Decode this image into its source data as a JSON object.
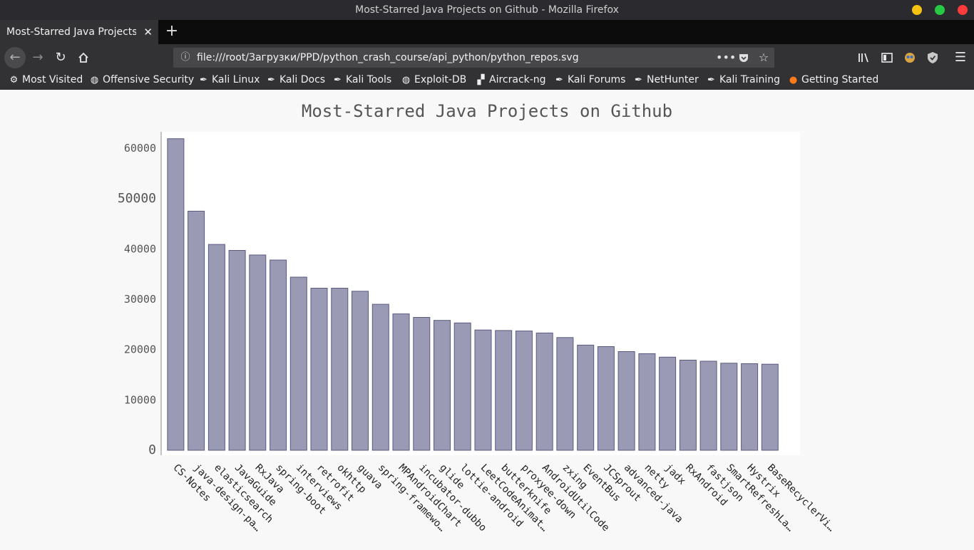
{
  "window": {
    "title": "Most-Starred Java Projects on Github - Mozilla Firefox"
  },
  "tab": {
    "title": "Most-Starred Java Projects on Github",
    "close": "✕",
    "new": "+"
  },
  "url": {
    "text": "file:///root/Загрузки/PPD/python_crash_course/api_python/python_repos.svg"
  },
  "bookmarks": [
    {
      "label": "Most Visited",
      "icon": "gear-icon"
    },
    {
      "label": "Offensive Security",
      "icon": "globe-icon"
    },
    {
      "label": "Kali Linux",
      "icon": "kali-dragon-icon"
    },
    {
      "label": "Kali Docs",
      "icon": "kali-dragon-icon"
    },
    {
      "label": "Kali Tools",
      "icon": "kali-dragon-icon"
    },
    {
      "label": "Exploit-DB",
      "icon": "globe-icon"
    },
    {
      "label": "Aircrack-ng",
      "icon": "aircrack-icon"
    },
    {
      "label": "Kali Forums",
      "icon": "kali-dragon-icon"
    },
    {
      "label": "NetHunter",
      "icon": "kali-dragon-icon"
    },
    {
      "label": "Kali Training",
      "icon": "kali-dragon-icon"
    },
    {
      "label": "Getting Started",
      "icon": "firefox-icon"
    }
  ],
  "colors": {
    "bar_fill": "#9b9ab5",
    "bar_stroke": "#5a5a80",
    "accent_yellow": "#f5c211",
    "accent_green": "#26c942",
    "accent_red": "#ff3b3b"
  },
  "chart_data": {
    "type": "bar",
    "title": "Most-Starred Java Projects on Github",
    "xlabel": "",
    "ylabel": "",
    "ylim": [
      0,
      62000
    ],
    "y_ticks": [
      0,
      10000,
      20000,
      30000,
      40000,
      50000,
      60000
    ],
    "y_tick_labels": [
      "0",
      "10000",
      "20000",
      "30000",
      "40000",
      "50000",
      "60000"
    ],
    "categories": [
      "CS-Notes",
      "java-design-pa…",
      "elasticsearch",
      "JavaGuide",
      "RxJava",
      "spring-boot",
      "interviews",
      "retrofit",
      "okhttp",
      "guava",
      "spring-framewo…",
      "MPAndroidChart",
      "incubator-dubbo",
      "glide",
      "lottie-android",
      "LeetCodeAnimat…",
      "butterknife",
      "proxyee-down",
      "AndroidUtilCode",
      "zxing",
      "EventBus",
      "JCSprout",
      "advanced-java",
      "netty",
      "jadx",
      "RxAndroid",
      "fastjson",
      "SmartRefreshLa…",
      "Hystrix",
      "BaseRecyclerVi…"
    ],
    "values": [
      61900,
      47500,
      40900,
      39700,
      38800,
      37800,
      34400,
      32200,
      32200,
      31600,
      29000,
      27100,
      26400,
      25800,
      25300,
      23900,
      23800,
      23700,
      23300,
      22400,
      20900,
      20600,
      19600,
      19200,
      18500,
      17900,
      17700,
      17300,
      17200,
      17100
    ],
    "grid": false,
    "legend": "none"
  }
}
